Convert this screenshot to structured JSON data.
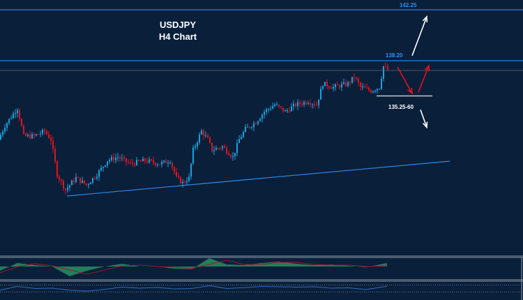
{
  "chart_data": {
    "type": "candlestick",
    "title": "USDJPY",
    "subtitle": "H4 Chart",
    "colors": {
      "background": "#0a1f3a",
      "up": "#1aa3e0",
      "down": "#e0141e",
      "level": "#2f7fd6",
      "trendline": "#2f7fd6",
      "price_line": "#4a5566"
    },
    "ylim": [
      125.5,
      143.0
    ],
    "close_path": [
      [
        0,
        131.93
      ],
      [
        3,
        133.04
      ],
      [
        9,
        134.43
      ],
      [
        12,
        132.21
      ],
      [
        17,
        132.21
      ],
      [
        22,
        132.6
      ],
      [
        25,
        131.93
      ],
      [
        28,
        129.16
      ],
      [
        32,
        127.94
      ],
      [
        37,
        128.88
      ],
      [
        42,
        128.32
      ],
      [
        47,
        129.16
      ],
      [
        52,
        130.27
      ],
      [
        57,
        130.54
      ],
      [
        63,
        129.99
      ],
      [
        70,
        130.27
      ],
      [
        77,
        129.99
      ],
      [
        82,
        130.27
      ],
      [
        85,
        128.88
      ],
      [
        88,
        128.49
      ],
      [
        91,
        128.88
      ],
      [
        93,
        131.1
      ],
      [
        97,
        132.6
      ],
      [
        100,
        131.93
      ],
      [
        102,
        131.1
      ],
      [
        107,
        131.38
      ],
      [
        112,
        130.54
      ],
      [
        115,
        131.93
      ],
      [
        118,
        132.76
      ],
      [
        123,
        133.32
      ],
      [
        127,
        134.15
      ],
      [
        132,
        134.7
      ],
      [
        137,
        134.15
      ],
      [
        142,
        134.7
      ],
      [
        148,
        134.98
      ],
      [
        152,
        134.7
      ],
      [
        155,
        136.37
      ],
      [
        160,
        136.09
      ],
      [
        167,
        136.37
      ],
      [
        170,
        136.92
      ],
      [
        173,
        136.09
      ],
      [
        178,
        135.81
      ],
      [
        182,
        136.09
      ],
      [
        184,
        137.76
      ],
      [
        186,
        137.48
      ]
    ],
    "levels": [
      {
        "price": 142.25,
        "label": "142.25"
      },
      {
        "price": 138.2,
        "label": "138.20"
      }
    ],
    "current_price": 137.42,
    "support_zone": {
      "label": "135.25-60",
      "price": 135.4
    },
    "trendline": [
      [
        32,
        127.44
      ],
      [
        215,
        130.21
      ]
    ],
    "scenario_arrows": [
      {
        "color": "#ffffff",
        "from": [
          197,
          138.6
        ],
        "to": [
          204,
          141.7
        ]
      },
      {
        "color": "#e0141e",
        "from": [
          190,
          137.7
        ],
        "to": [
          197,
          135.6
        ]
      },
      {
        "color": "#e0141e",
        "from": [
          200,
          135.7
        ],
        "to": [
          205,
          137.8
        ]
      },
      {
        "color": "#ffffff",
        "from": [
          201,
          134.3
        ],
        "to": [
          204,
          132.9
        ]
      }
    ],
    "macd_histogram": [
      -6,
      5,
      2,
      0,
      -14,
      -6,
      0,
      4,
      0,
      0,
      -3,
      -4,
      12,
      3,
      2,
      5,
      7,
      4,
      2,
      3,
      1,
      -1,
      4
    ],
    "macd_signal": [
      -9,
      0,
      4,
      1,
      -5,
      -11,
      -5,
      1,
      2,
      0,
      -1,
      -3,
      3,
      9,
      3,
      3,
      6,
      6,
      3,
      2,
      2,
      0,
      1
    ],
    "rsi": [
      40,
      62,
      50,
      52,
      40,
      35,
      45,
      58,
      52,
      56,
      48,
      50,
      66,
      50,
      55,
      62,
      60,
      58,
      60,
      52,
      54,
      44,
      60
    ],
    "rsi_levels": [
      70,
      30
    ]
  }
}
